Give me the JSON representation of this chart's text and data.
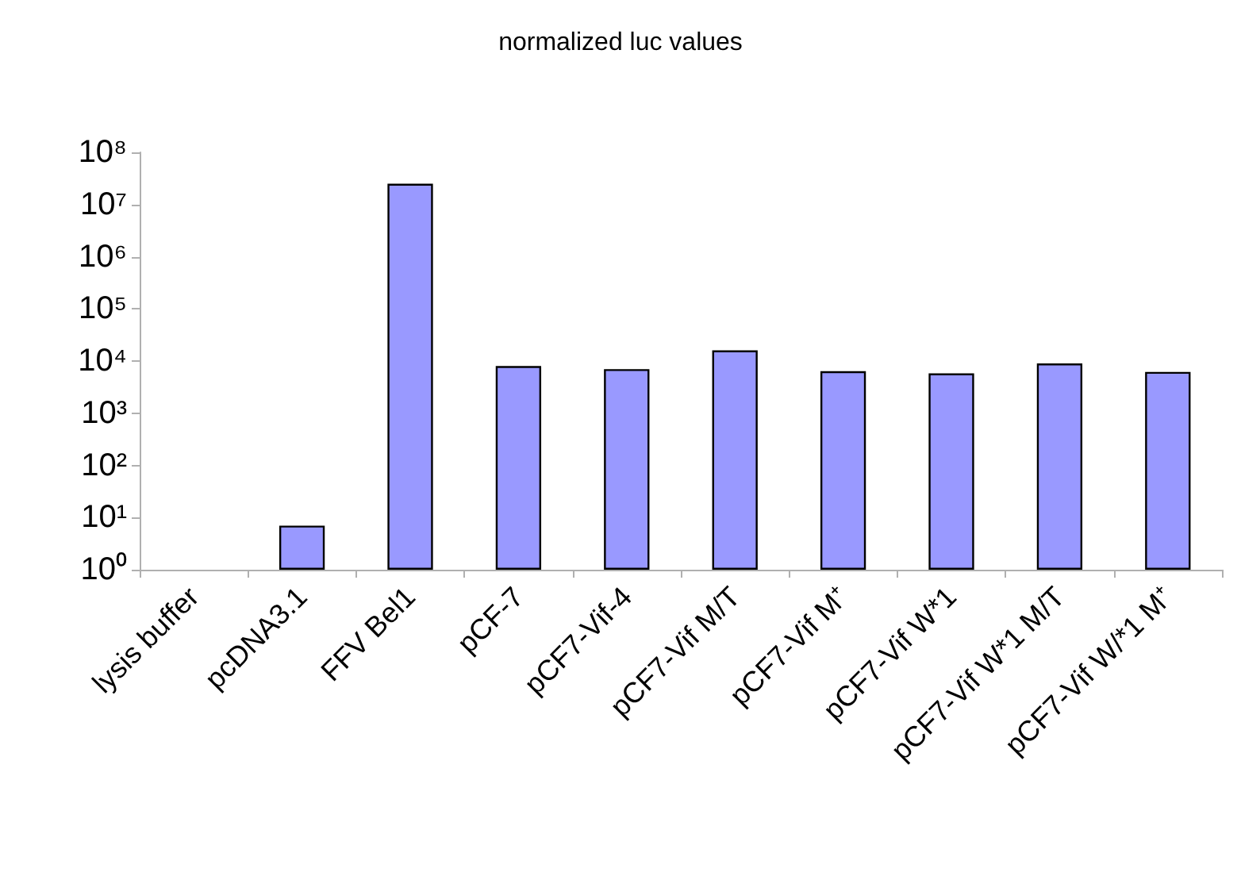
{
  "chart_data": {
    "type": "bar",
    "title": "normalized luc values",
    "categories": [
      "lysis buffer",
      "pcDNA3.1",
      "FFV Bel1",
      "pCF-7",
      "pCF7-Vif-4",
      "pCF7-Vif M/T",
      "pCF7-Vif M⁺",
      "pCF7-Vif W*1",
      "pCF7-Vif W*1 M/T",
      "pCF7-Vif W/*1 M⁺"
    ],
    "values": [
      null,
      7,
      25000000,
      8000,
      7000,
      16000,
      6400,
      5800,
      9000,
      6200
    ],
    "color": "#9999ff",
    "log": true,
    "ylim": [
      1,
      100000000
    ],
    "yticks": [
      {
        "value": 1,
        "label": "10⁰"
      },
      {
        "value": 10,
        "label": "10¹"
      },
      {
        "value": 100,
        "label": "10²"
      },
      {
        "value": 1000,
        "label": "10³"
      },
      {
        "value": 10000,
        "label": "10⁴"
      },
      {
        "value": 100000,
        "label": "10⁵"
      },
      {
        "value": 1000000,
        "label": "10⁶"
      },
      {
        "value": 10000000,
        "label": "10⁷"
      },
      {
        "value": 100000000,
        "label": "10⁸"
      }
    ],
    "grid": false
  }
}
